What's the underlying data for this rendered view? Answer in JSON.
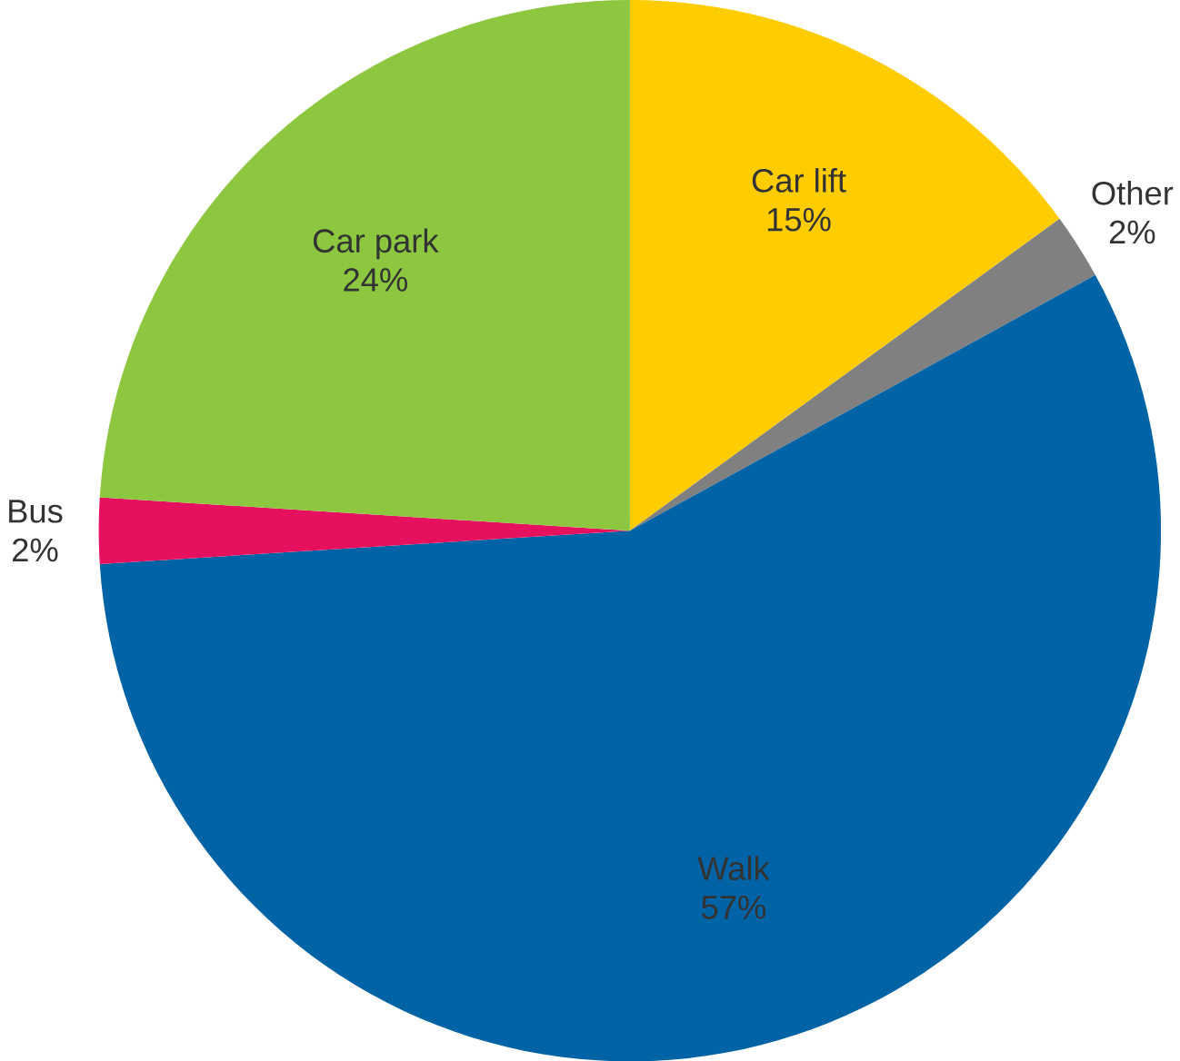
{
  "chart_data": {
    "type": "pie",
    "categories": [
      "Car lift",
      "Other",
      "Walk",
      "Bus",
      "Car park"
    ],
    "values": [
      15,
      2,
      57,
      2,
      24
    ],
    "value_labels": [
      "15%",
      "2%",
      "57%",
      "2%",
      "24%"
    ],
    "colors": [
      "#ffcc00",
      "#808080",
      "#0063a6",
      "#e5115f",
      "#8dc63f"
    ]
  }
}
